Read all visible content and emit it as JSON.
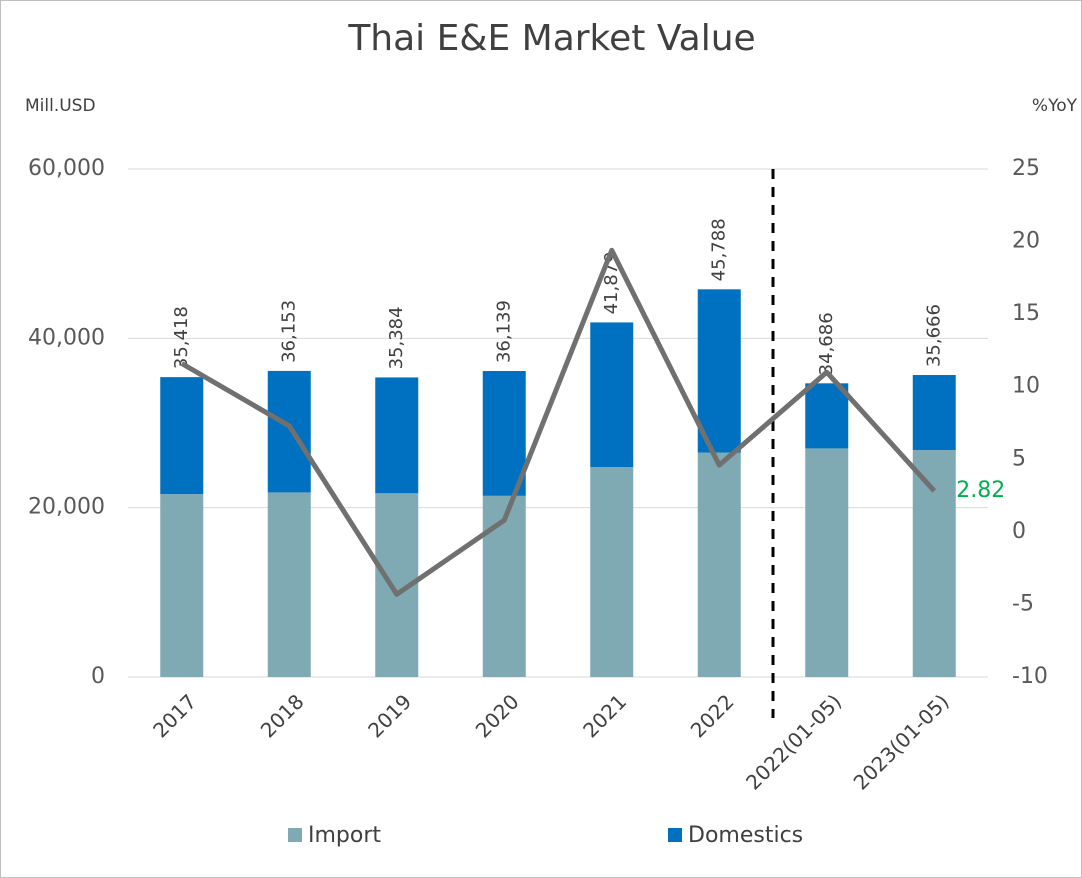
{
  "chart_data": {
    "type": "bar",
    "stacked": true,
    "title": "Thai E&E Market Value",
    "y_label": "Mill.USD",
    "y2_label": "%YoY",
    "categories": [
      "2017",
      "2018",
      "2019",
      "2020",
      "2021",
      "2022",
      "2022(01-05)",
      "2023(01-05)"
    ],
    "series": [
      {
        "name": "Import",
        "color": "#7faab3",
        "values": [
          21600,
          21800,
          21700,
          21400,
          24800,
          26500,
          27000,
          26800
        ]
      },
      {
        "name": "Domestics",
        "color": "#0070c0",
        "values": [
          13818,
          14353,
          13684,
          14739,
          17079,
          19288,
          7686,
          8866
        ]
      }
    ],
    "total_labels": [
      "35,418",
      "36,153",
      "35,384",
      "36,139",
      "41,879",
      "45,788",
      "34,686",
      "35,666"
    ],
    "yoy": {
      "type": "line",
      "axis": "y2",
      "color": "#707070",
      "values": [
        11.6,
        7.3,
        -4.3,
        0.8,
        19.4,
        4.6,
        11.0,
        2.82
      ],
      "value_labels": [
        null,
        null,
        null,
        null,
        null,
        null,
        null,
        "2.82"
      ],
      "label_color": "#00b050"
    },
    "ylim": [
      0,
      60000
    ],
    "yticks": [
      {
        "value": 0,
        "label": "0"
      },
      {
        "value": 20000,
        "label": "20,000"
      },
      {
        "value": 40000,
        "label": "40,000"
      },
      {
        "value": 60000,
        "label": "60,000"
      }
    ],
    "y2lim": [
      -10,
      25
    ],
    "y2ticks": [
      -10,
      -5,
      0,
      5,
      10,
      15,
      20,
      25
    ],
    "grid": true,
    "legend": "bottom"
  }
}
